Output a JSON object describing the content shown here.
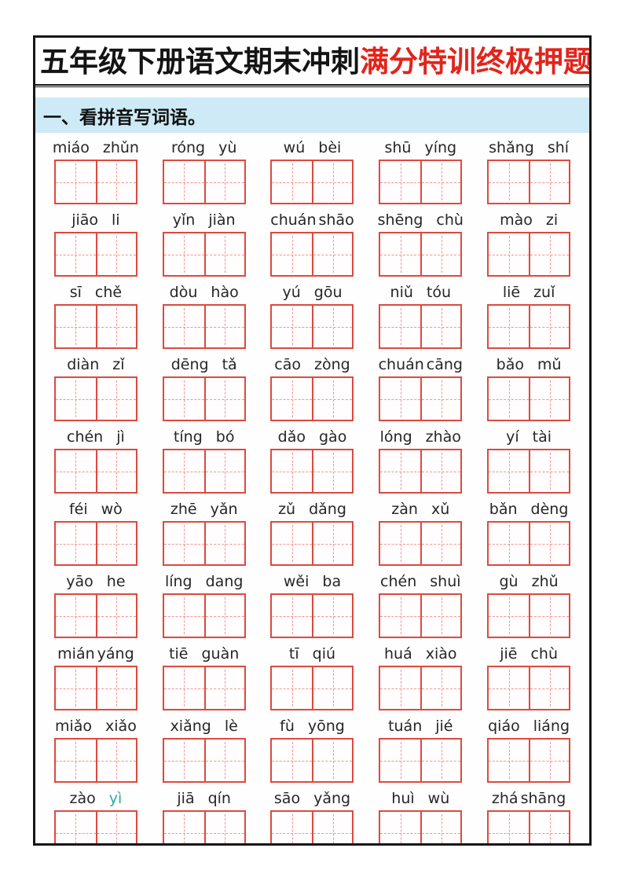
{
  "title": {
    "black_part": "五年级下册语文期末冲刺",
    "red_part": "满分特训终极押题",
    "red_color": "#e1251b"
  },
  "section": {
    "label": "一、看拼音写词语。",
    "background": "#cdeaf6"
  },
  "grid": {
    "box_border_color": "#dd4a3e",
    "box_dash_color": "#f0978e",
    "rows": [
      [
        [
          "miáo",
          "zhǔn"
        ],
        [
          "róng",
          "yù"
        ],
        [
          "wú",
          "bèi"
        ],
        [
          "shū",
          "yíng"
        ],
        [
          "shǎng",
          "shí"
        ]
      ],
      [
        [
          "jiāo",
          "li"
        ],
        [
          "yǐn",
          "jiàn"
        ],
        [
          "chuán",
          "shāo"
        ],
        [
          "shēng",
          "chù"
        ],
        [
          "mào",
          "zi"
        ]
      ],
      [
        [
          "sī",
          "chě"
        ],
        [
          "dòu",
          "hào"
        ],
        [
          "yú",
          "gōu"
        ],
        [
          "niǔ",
          "tóu"
        ],
        [
          "liē",
          "zuǐ"
        ]
      ],
      [
        [
          "diàn",
          "zǐ"
        ],
        [
          "dēng",
          "tǎ"
        ],
        [
          "cāo",
          "zòng"
        ],
        [
          "chuán",
          "cāng"
        ],
        [
          "bǎo",
          "mǔ"
        ]
      ],
      [
        [
          "chén",
          "jì"
        ],
        [
          "tíng",
          "bó"
        ],
        [
          "dǎo",
          "gào"
        ],
        [
          "lóng",
          "zhào"
        ],
        [
          "yí",
          "tài"
        ]
      ],
      [
        [
          "féi",
          "wò"
        ],
        [
          "zhē",
          "yǎn"
        ],
        [
          "zǔ",
          "dǎng"
        ],
        [
          "zàn",
          "xǔ"
        ],
        [
          "bǎn",
          "dèng"
        ]
      ],
      [
        [
          "yāo",
          "he"
        ],
        [
          "líng",
          "dang"
        ],
        [
          "wěi",
          "ba"
        ],
        [
          "chén",
          "shuì"
        ],
        [
          "gù",
          "zhǔ"
        ]
      ],
      [
        [
          "mián",
          "yáng"
        ],
        [
          "tiē",
          "guàn"
        ],
        [
          "tī",
          "qiú"
        ],
        [
          "huá",
          "xiào"
        ],
        [
          "jiē",
          "chù"
        ]
      ],
      [
        [
          "miǎo",
          "xiǎo"
        ],
        [
          "xiǎng",
          "lè"
        ],
        [
          "fù",
          "yōng"
        ],
        [
          "tuán",
          "jié"
        ],
        [
          "qiáo",
          "liáng"
        ]
      ],
      [
        [
          "zào",
          "yì"
        ],
        [
          "jiā",
          "qín"
        ],
        [
          "sāo",
          "yǎng"
        ],
        [
          "huì",
          "wù"
        ],
        [
          "zhá",
          "shāng"
        ]
      ]
    ],
    "tight_pairs": [
      [
        1,
        2
      ],
      [
        3,
        3
      ],
      [
        7,
        0
      ],
      [
        9,
        4
      ]
    ],
    "highlight": {
      "row": 9,
      "col": 0,
      "syllable": 1,
      "color": "#2ba8a5"
    }
  }
}
